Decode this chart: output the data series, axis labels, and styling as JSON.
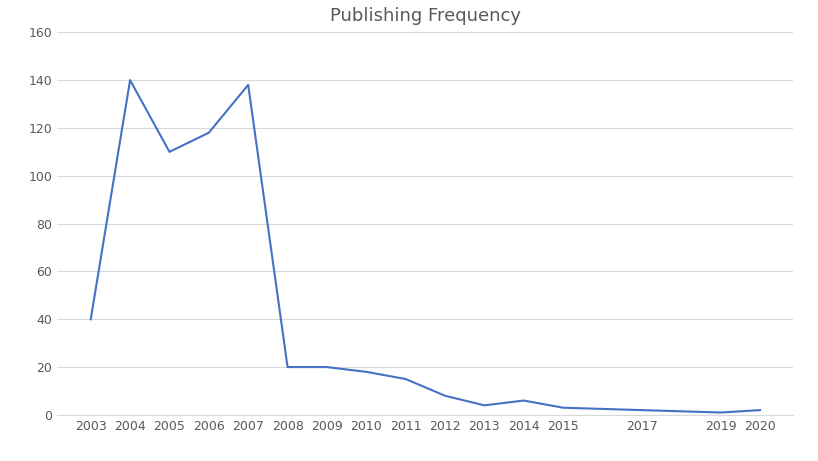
{
  "title": "Publishing Frequency",
  "x_values": [
    2003,
    2004,
    2005,
    2006,
    2007,
    2008,
    2009,
    2010,
    2011,
    2012,
    2013,
    2014,
    2015,
    2017,
    2019,
    2020
  ],
  "y_values": [
    40,
    140,
    110,
    118,
    138,
    20,
    20,
    18,
    15,
    8,
    4,
    6,
    3,
    2,
    1,
    2
  ],
  "line_color": "#4472C4",
  "line_width": 1.5,
  "ylim": [
    0,
    160
  ],
  "yticks": [
    0,
    20,
    40,
    60,
    80,
    100,
    120,
    140,
    160
  ],
  "xticks": [
    2003,
    2004,
    2005,
    2006,
    2007,
    2008,
    2009,
    2010,
    2011,
    2012,
    2013,
    2014,
    2015,
    2017,
    2019,
    2020
  ],
  "title_fontsize": 13,
  "tick_fontsize": 9,
  "background_color": "#ffffff",
  "grid_color": "#d9d9d9",
  "title_color": "#595959",
  "tick_color": "#595959"
}
